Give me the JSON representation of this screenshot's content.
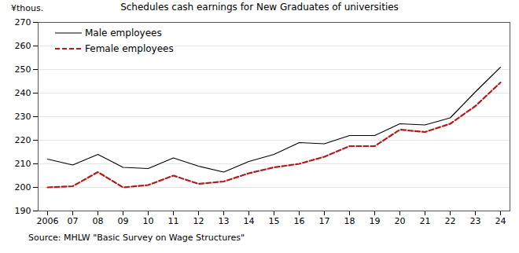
{
  "chart_data": {
    "type": "line",
    "title": "Schedules cash earnings for New Graduates of universities",
    "y_label": "¥thous.",
    "caption": "Source: MHLW \"Basic Survey on Wage Structures\"",
    "categories": [
      "2006",
      "07",
      "08",
      "09",
      "10",
      "11",
      "12",
      "13",
      "14",
      "15",
      "16",
      "17",
      "18",
      "19",
      "20",
      "21",
      "22",
      "23",
      "24"
    ],
    "series": [
      {
        "name": "Male employees",
        "color": "#000000",
        "line_style": "solid",
        "values": [
          212,
          209.5,
          214,
          208.5,
          208,
          212.5,
          209,
          206.5,
          211,
          214,
          219,
          218.5,
          222,
          222,
          227,
          226.5,
          229.5,
          240.5,
          251
        ]
      },
      {
        "name": "Female employees",
        "color": "#b31b1b",
        "line_style": "dashed",
        "values": [
          200,
          200.5,
          206.5,
          200,
          201,
          205,
          201.5,
          202.5,
          206,
          208.5,
          210,
          213,
          217.5,
          217.5,
          224.5,
          223.5,
          227,
          234.5,
          244.5
        ]
      }
    ],
    "ylim": [
      190,
      270
    ],
    "yticks": [
      190,
      200,
      210,
      220,
      230,
      240,
      250,
      260,
      270
    ],
    "grid": true,
    "legend": "top-left"
  }
}
